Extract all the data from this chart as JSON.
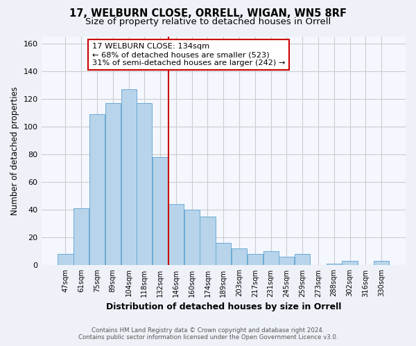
{
  "title": "17, WELBURN CLOSE, ORRELL, WIGAN, WN5 8RF",
  "subtitle": "Size of property relative to detached houses in Orrell",
  "xlabel": "Distribution of detached houses by size in Orrell",
  "ylabel": "Number of detached properties",
  "bar_labels": [
    "47sqm",
    "61sqm",
    "75sqm",
    "89sqm",
    "104sqm",
    "118sqm",
    "132sqm",
    "146sqm",
    "160sqm",
    "174sqm",
    "189sqm",
    "203sqm",
    "217sqm",
    "231sqm",
    "245sqm",
    "259sqm",
    "273sqm",
    "288sqm",
    "302sqm",
    "316sqm",
    "330sqm"
  ],
  "bar_values": [
    8,
    41,
    109,
    117,
    127,
    117,
    78,
    44,
    40,
    35,
    16,
    12,
    8,
    10,
    6,
    8,
    0,
    1,
    3,
    0,
    3
  ],
  "bar_color": "#b8d4ea",
  "bar_edge_color": "#6aaad4",
  "vline_x": 6.5,
  "vline_color": "#cc0000",
  "annotation_title": "17 WELBURN CLOSE: 134sqm",
  "annotation_line1": "← 68% of detached houses are smaller (523)",
  "annotation_line2": "31% of semi-detached houses are larger (242) →",
  "annotation_box_color": "#ffffff",
  "annotation_box_edge": "#cc0000",
  "ylim": [
    0,
    165
  ],
  "yticks": [
    0,
    20,
    40,
    60,
    80,
    100,
    120,
    140,
    160
  ],
  "footer1": "Contains HM Land Registry data © Crown copyright and database right 2024.",
  "footer2": "Contains public sector information licensed under the Open Government Licence v3.0.",
  "bg_color": "#eef2f8",
  "plot_bg_color": "#f4f7fd",
  "title_fontsize": 10.5,
  "subtitle_fontsize": 9.5
}
